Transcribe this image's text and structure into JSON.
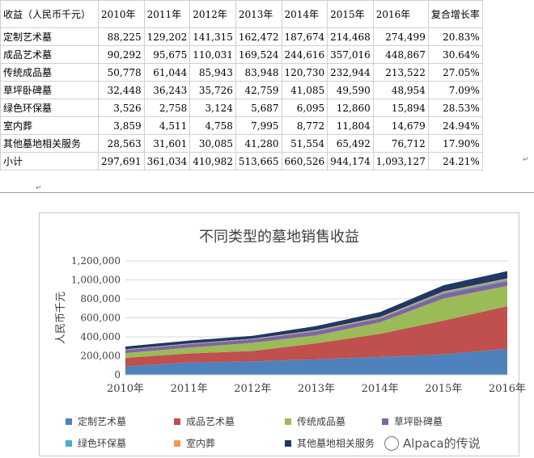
{
  "table": {
    "header": [
      "收益（人民币千元）",
      "2010年",
      "2011年",
      "2012年",
      "2013年",
      "2014年",
      "2015年",
      "2016年",
      "复合增长率"
    ],
    "rows": [
      {
        "label": "定制艺术墓",
        "values": [
          "88,225",
          "129,202",
          "141,315",
          "162,472",
          "187,674",
          "214,468",
          "274,499"
        ],
        "cagr": "20.83%"
      },
      {
        "label": "成品艺术墓",
        "values": [
          "90,292",
          "95,675",
          "110,031",
          "169,524",
          "244,616",
          "357,016",
          "448,867"
        ],
        "cagr": "30.64%"
      },
      {
        "label": "传统成品墓",
        "values": [
          "50,778",
          "61,044",
          "85,943",
          "83,948",
          "120,730",
          "232,944",
          "213,522"
        ],
        "cagr": "27.05%"
      },
      {
        "label": "草坪卧碑墓",
        "values": [
          "32,448",
          "36,243",
          "35,726",
          "42,759",
          "41,085",
          "49,590",
          "48,954"
        ],
        "cagr": "7.09%"
      },
      {
        "label": "绿色环保墓",
        "values": [
          "3,526",
          "2,758",
          "3,124",
          "5,687",
          "6,095",
          "12,860",
          "15,894"
        ],
        "cagr": "28.53%"
      },
      {
        "label": "室内葬",
        "values": [
          "3,859",
          "4,511",
          "4,758",
          "7,995",
          "8,772",
          "11,804",
          "14,679"
        ],
        "cagr": "24.94%"
      },
      {
        "label": "其他墓地相关服务",
        "values": [
          "28,563",
          "31,601",
          "30,085",
          "41,280",
          "51,554",
          "65,492",
          "76,712"
        ],
        "cagr": "17.90%"
      },
      {
        "label": "小计",
        "values": [
          "297,691",
          "361,034",
          "410,982",
          "513,665",
          "660,526",
          "944,174",
          "1,093,127"
        ],
        "cagr": "24.21%"
      }
    ]
  },
  "chart_data": {
    "type": "area",
    "stacked": true,
    "title": "不同类型的墓地销售收益",
    "ylabel": "人民币千元",
    "xlabel": "",
    "categories": [
      "2010年",
      "2011年",
      "2012年",
      "2013年",
      "2014年",
      "2015年",
      "2016年"
    ],
    "ylim": [
      0,
      1200000
    ],
    "yticks": [
      "0",
      "200,000",
      "400,000",
      "600,000",
      "800,000",
      "1,000,000",
      "1,200,000"
    ],
    "grid": true,
    "legend_position": "bottom",
    "series": [
      {
        "name": "定制艺术墓",
        "color": "#4f81bd",
        "values": [
          88225,
          129202,
          141315,
          162472,
          187674,
          214468,
          274499
        ]
      },
      {
        "name": "成品艺术墓",
        "color": "#c0504d",
        "values": [
          90292,
          95675,
          110031,
          169524,
          244616,
          357016,
          448867
        ]
      },
      {
        "name": "传统成品墓",
        "color": "#9bbb59",
        "values": [
          50778,
          61044,
          85943,
          83948,
          120730,
          232944,
          213522
        ]
      },
      {
        "name": "草坪卧碑墓",
        "color": "#8064a2",
        "values": [
          32448,
          36243,
          35726,
          42759,
          41085,
          49590,
          48954
        ]
      },
      {
        "name": "绿色环保墓",
        "color": "#4bacc6",
        "values": [
          3526,
          2758,
          3124,
          5687,
          6095,
          12860,
          15894
        ]
      },
      {
        "name": "室内葬",
        "color": "#f79646",
        "values": [
          3859,
          4511,
          4758,
          7995,
          8772,
          11804,
          14679
        ]
      },
      {
        "name": "其他墓地相关服务",
        "color": "#1f3864",
        "values": [
          28563,
          31601,
          30085,
          41280,
          51554,
          65492,
          76712
        ]
      }
    ]
  },
  "watermark": "Alpaca的传说"
}
